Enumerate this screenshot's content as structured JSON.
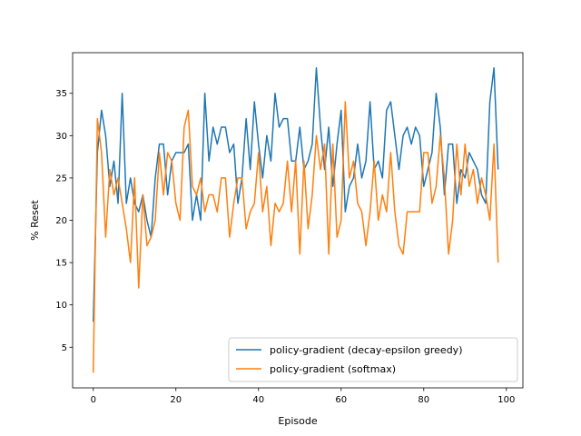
{
  "chart_data": {
    "type": "line",
    "xlabel": "Episode",
    "ylabel": "% Reset",
    "xlim": [
      -5,
      104
    ],
    "ylim": [
      0.2,
      39.8
    ],
    "xticks": [
      0,
      20,
      40,
      60,
      80,
      100
    ],
    "yticks": [
      5,
      10,
      15,
      20,
      25,
      30,
      35
    ],
    "grid": false,
    "legend_position": "lower-right",
    "series": [
      {
        "name": "policy-gradient (decay-epsilon greedy)",
        "color": "#1f77b4",
        "values": [
          8,
          28,
          33,
          30,
          24,
          27,
          22,
          35,
          22,
          25,
          22,
          21,
          23,
          20,
          18,
          25,
          29,
          29,
          23,
          27,
          28,
          28,
          28,
          29,
          20,
          23,
          20,
          35,
          27,
          31,
          29,
          31,
          31,
          28,
          29,
          22,
          25,
          32,
          26,
          34,
          29,
          25,
          30,
          27,
          35,
          31,
          32,
          32,
          27,
          27,
          31,
          26,
          27,
          29,
          38,
          31,
          26,
          31,
          24,
          29,
          33,
          21,
          24,
          25,
          29,
          25,
          27,
          34,
          26,
          27,
          25,
          33,
          34,
          30,
          26,
          30,
          31,
          29,
          31,
          30,
          24,
          26,
          28,
          35,
          31,
          23,
          29,
          29,
          22,
          26,
          25,
          28,
          27,
          26,
          23,
          22,
          34,
          38,
          26
        ]
      },
      {
        "name": "policy-gradient (softmax)",
        "color": "#ff7f0e",
        "values": [
          2,
          32,
          28,
          18,
          26,
          23,
          25,
          22,
          19,
          15,
          25,
          12,
          23,
          17,
          18,
          20,
          28,
          23,
          28,
          27,
          22,
          20,
          31,
          33,
          24,
          23,
          25,
          21,
          23,
          23,
          21,
          25,
          25,
          18,
          22,
          25,
          25,
          19,
          21,
          22,
          28,
          21,
          24,
          17,
          22,
          21,
          22,
          27,
          21,
          27,
          16,
          27,
          19,
          23,
          30,
          26,
          29,
          16,
          29,
          18,
          20,
          34,
          25,
          27,
          22,
          21,
          17,
          21,
          27,
          20,
          23,
          21,
          28,
          21,
          17,
          16,
          21,
          21,
          21,
          21,
          28,
          28,
          22,
          24,
          30,
          25,
          16,
          20,
          29,
          23,
          29,
          24,
          26,
          22,
          25,
          23,
          20,
          29,
          15
        ]
      }
    ]
  }
}
